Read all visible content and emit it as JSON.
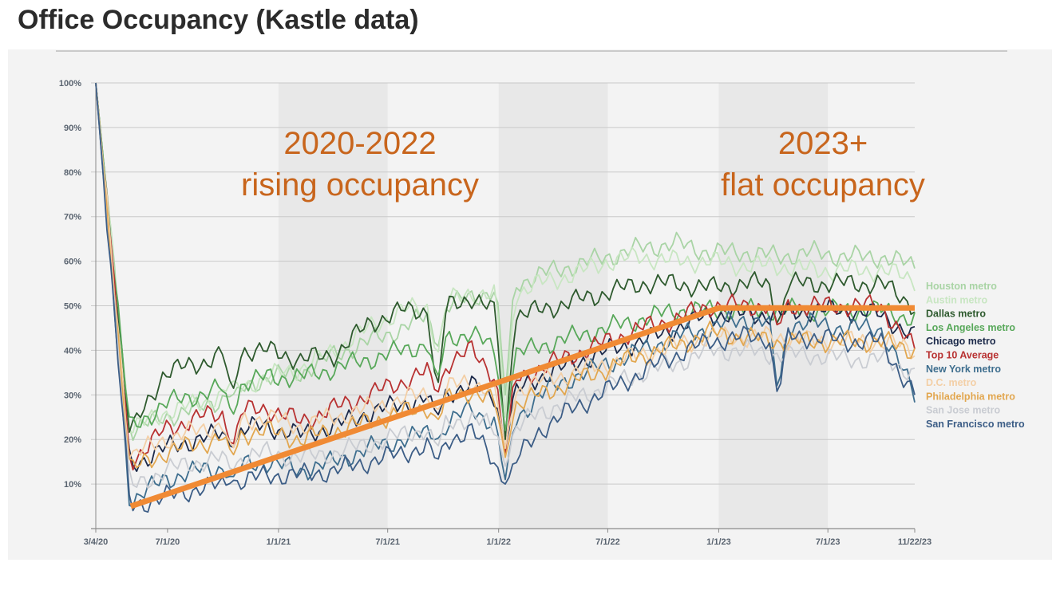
{
  "title": "Office Occupancy (Kastle data)",
  "colors": {
    "panel_bg": "#f3f3f3",
    "grid": "#c9c9c9",
    "trend": "#f08a34",
    "annotation": "#c8651c"
  },
  "chart_data": {
    "type": "line",
    "title": "Office Occupancy (Kastle data)",
    "xlabel": "",
    "ylabel": "",
    "x_ticks": [
      "3/4/20",
      "7/1/20",
      "1/1/21",
      "7/1/21",
      "1/1/22",
      "7/1/22",
      "1/1/23",
      "7/1/23",
      "11/22/23"
    ],
    "y_ticks": [
      "10%",
      "20%",
      "30%",
      "40%",
      "50%",
      "60%",
      "70%",
      "80%",
      "90%",
      "100%"
    ],
    "ylim": [
      0,
      100
    ],
    "xlim": [
      "3/4/20",
      "11/22/23"
    ],
    "grid": true,
    "shaded_bands": [
      [
        "1/1/21",
        "7/1/21"
      ],
      [
        "1/1/22",
        "7/1/22"
      ],
      [
        "1/1/23",
        "7/1/23"
      ]
    ],
    "legend_position": "right",
    "series": [
      {
        "name": "Houston metro",
        "color": "#a9d4a5",
        "values": [
          100,
          22,
          25,
          27,
          30,
          34,
          35,
          39,
          42,
          45,
          49,
          52,
          54,
          57,
          59,
          61,
          63,
          64,
          62,
          62,
          61,
          62,
          61,
          61,
          59
        ],
        "dips": [
          [
            4,
            30
          ],
          [
            10,
            40
          ],
          [
            12,
            30
          ]
        ]
      },
      {
        "name": "Austin metro",
        "color": "#c8e6c2",
        "values": [
          100,
          22,
          26,
          28,
          31,
          34,
          36,
          40,
          45,
          49,
          50,
          53,
          52,
          55,
          57,
          60,
          61,
          60,
          60,
          59,
          59,
          58,
          58,
          58,
          56
        ],
        "dips": [
          [
            4,
            33
          ],
          [
            10,
            38
          ],
          [
            12,
            25
          ]
        ]
      },
      {
        "name": "Dallas metro",
        "color": "#2e5a2e",
        "values": [
          100,
          21,
          35,
          37,
          40,
          40,
          38,
          39,
          46,
          49,
          49,
          52,
          47,
          49,
          51,
          53,
          55,
          55,
          54,
          55,
          55,
          55,
          55,
          55,
          50
        ],
        "dips": [
          [
            4,
            30
          ],
          [
            10,
            30
          ],
          [
            12,
            20
          ],
          [
            20,
            45
          ]
        ]
      },
      {
        "name": "Los Angeles metro",
        "color": "#58a85a",
        "values": [
          100,
          22,
          28,
          30,
          32,
          34,
          34,
          36,
          38,
          40,
          42,
          44,
          38,
          41,
          43,
          45,
          47,
          49,
          49,
          49,
          49,
          49,
          49,
          49,
          47
        ],
        "dips": [
          [
            4,
            25
          ],
          [
            10,
            33
          ],
          [
            12,
            22
          ]
        ]
      },
      {
        "name": "Chicago metro",
        "color": "#1c2a4a",
        "values": [
          100,
          14,
          18,
          20,
          22,
          23,
          21,
          23,
          26,
          28,
          30,
          32,
          29,
          34,
          37,
          40,
          42,
          45,
          48,
          48,
          48,
          49,
          49,
          48,
          43
        ],
        "dips": [
          [
            4,
            18
          ],
          [
            10,
            25
          ],
          [
            12,
            18
          ]
        ]
      },
      {
        "name": "Top 10 Average",
        "color": "#b83232",
        "values": [
          100,
          15,
          22,
          25,
          26,
          27,
          24,
          27,
          30,
          33,
          36,
          40,
          32,
          36,
          39,
          42,
          45,
          47,
          50,
          50,
          50,
          50,
          50,
          50,
          40
        ],
        "dips": [
          [
            4,
            18
          ],
          [
            10,
            30
          ],
          [
            12,
            17
          ],
          [
            20,
            45
          ]
        ]
      },
      {
        "name": "New York metro",
        "color": "#3e6e8e",
        "values": [
          100,
          6,
          11,
          13,
          14,
          15,
          13,
          15,
          18,
          20,
          22,
          27,
          22,
          30,
          34,
          37,
          40,
          43,
          45,
          47,
          46,
          46,
          45,
          45,
          30
        ],
        "dips": [
          [
            4,
            11
          ],
          [
            10,
            20
          ],
          [
            12,
            11
          ],
          [
            20,
            30
          ]
        ]
      },
      {
        "name": "D.C. metro",
        "color": "#f3cfa6",
        "values": [
          100,
          16,
          20,
          22,
          24,
          25,
          23,
          25,
          27,
          29,
          31,
          33,
          30,
          33,
          35,
          37,
          39,
          41,
          43,
          43,
          43,
          42,
          42,
          42,
          40
        ],
        "dips": [
          [
            4,
            17
          ],
          [
            10,
            26
          ],
          [
            12,
            18
          ]
        ]
      },
      {
        "name": "Philadelphia metro",
        "color": "#e2a750",
        "values": [
          100,
          13,
          17,
          19,
          21,
          22,
          20,
          22,
          24,
          26,
          28,
          31,
          27,
          30,
          33,
          36,
          39,
          41,
          44,
          43,
          42,
          42,
          42,
          42,
          40
        ],
        "dips": [
          [
            4,
            16
          ],
          [
            10,
            24
          ],
          [
            12,
            16
          ]
        ]
      },
      {
        "name": "San Jose metro",
        "color": "#c9ccd2",
        "values": [
          100,
          9,
          13,
          15,
          16,
          17,
          16,
          17,
          19,
          21,
          23,
          25,
          21,
          26,
          29,
          32,
          35,
          37,
          40,
          40,
          39,
          39,
          38,
          38,
          35
        ],
        "dips": [
          [
            4,
            13
          ],
          [
            10,
            18
          ],
          [
            12,
            14
          ]
        ]
      },
      {
        "name": "San Francisco metro",
        "color": "#3c5d86",
        "values": [
          100,
          5,
          7,
          9,
          10,
          12,
          12,
          13,
          15,
          17,
          19,
          22,
          12,
          22,
          27,
          31,
          35,
          39,
          42,
          43,
          43,
          43,
          42,
          42,
          30
        ],
        "dips": [
          [
            4,
            11
          ],
          [
            10,
            15
          ],
          [
            12,
            10
          ],
          [
            20,
            29
          ]
        ]
      }
    ],
    "trend_line": {
      "color": "#f08a34",
      "points": [
        [
          "5/1/20",
          5
        ],
        [
          "1/1/23",
          49.5
        ],
        [
          "11/22/23",
          49.5
        ]
      ]
    },
    "annotations": [
      {
        "lines": [
          "2020-2022",
          "rising occupancy"
        ],
        "color": "#c8651c"
      },
      {
        "lines": [
          "2023+",
          "flat occupancy"
        ],
        "color": "#c8651c"
      }
    ]
  }
}
